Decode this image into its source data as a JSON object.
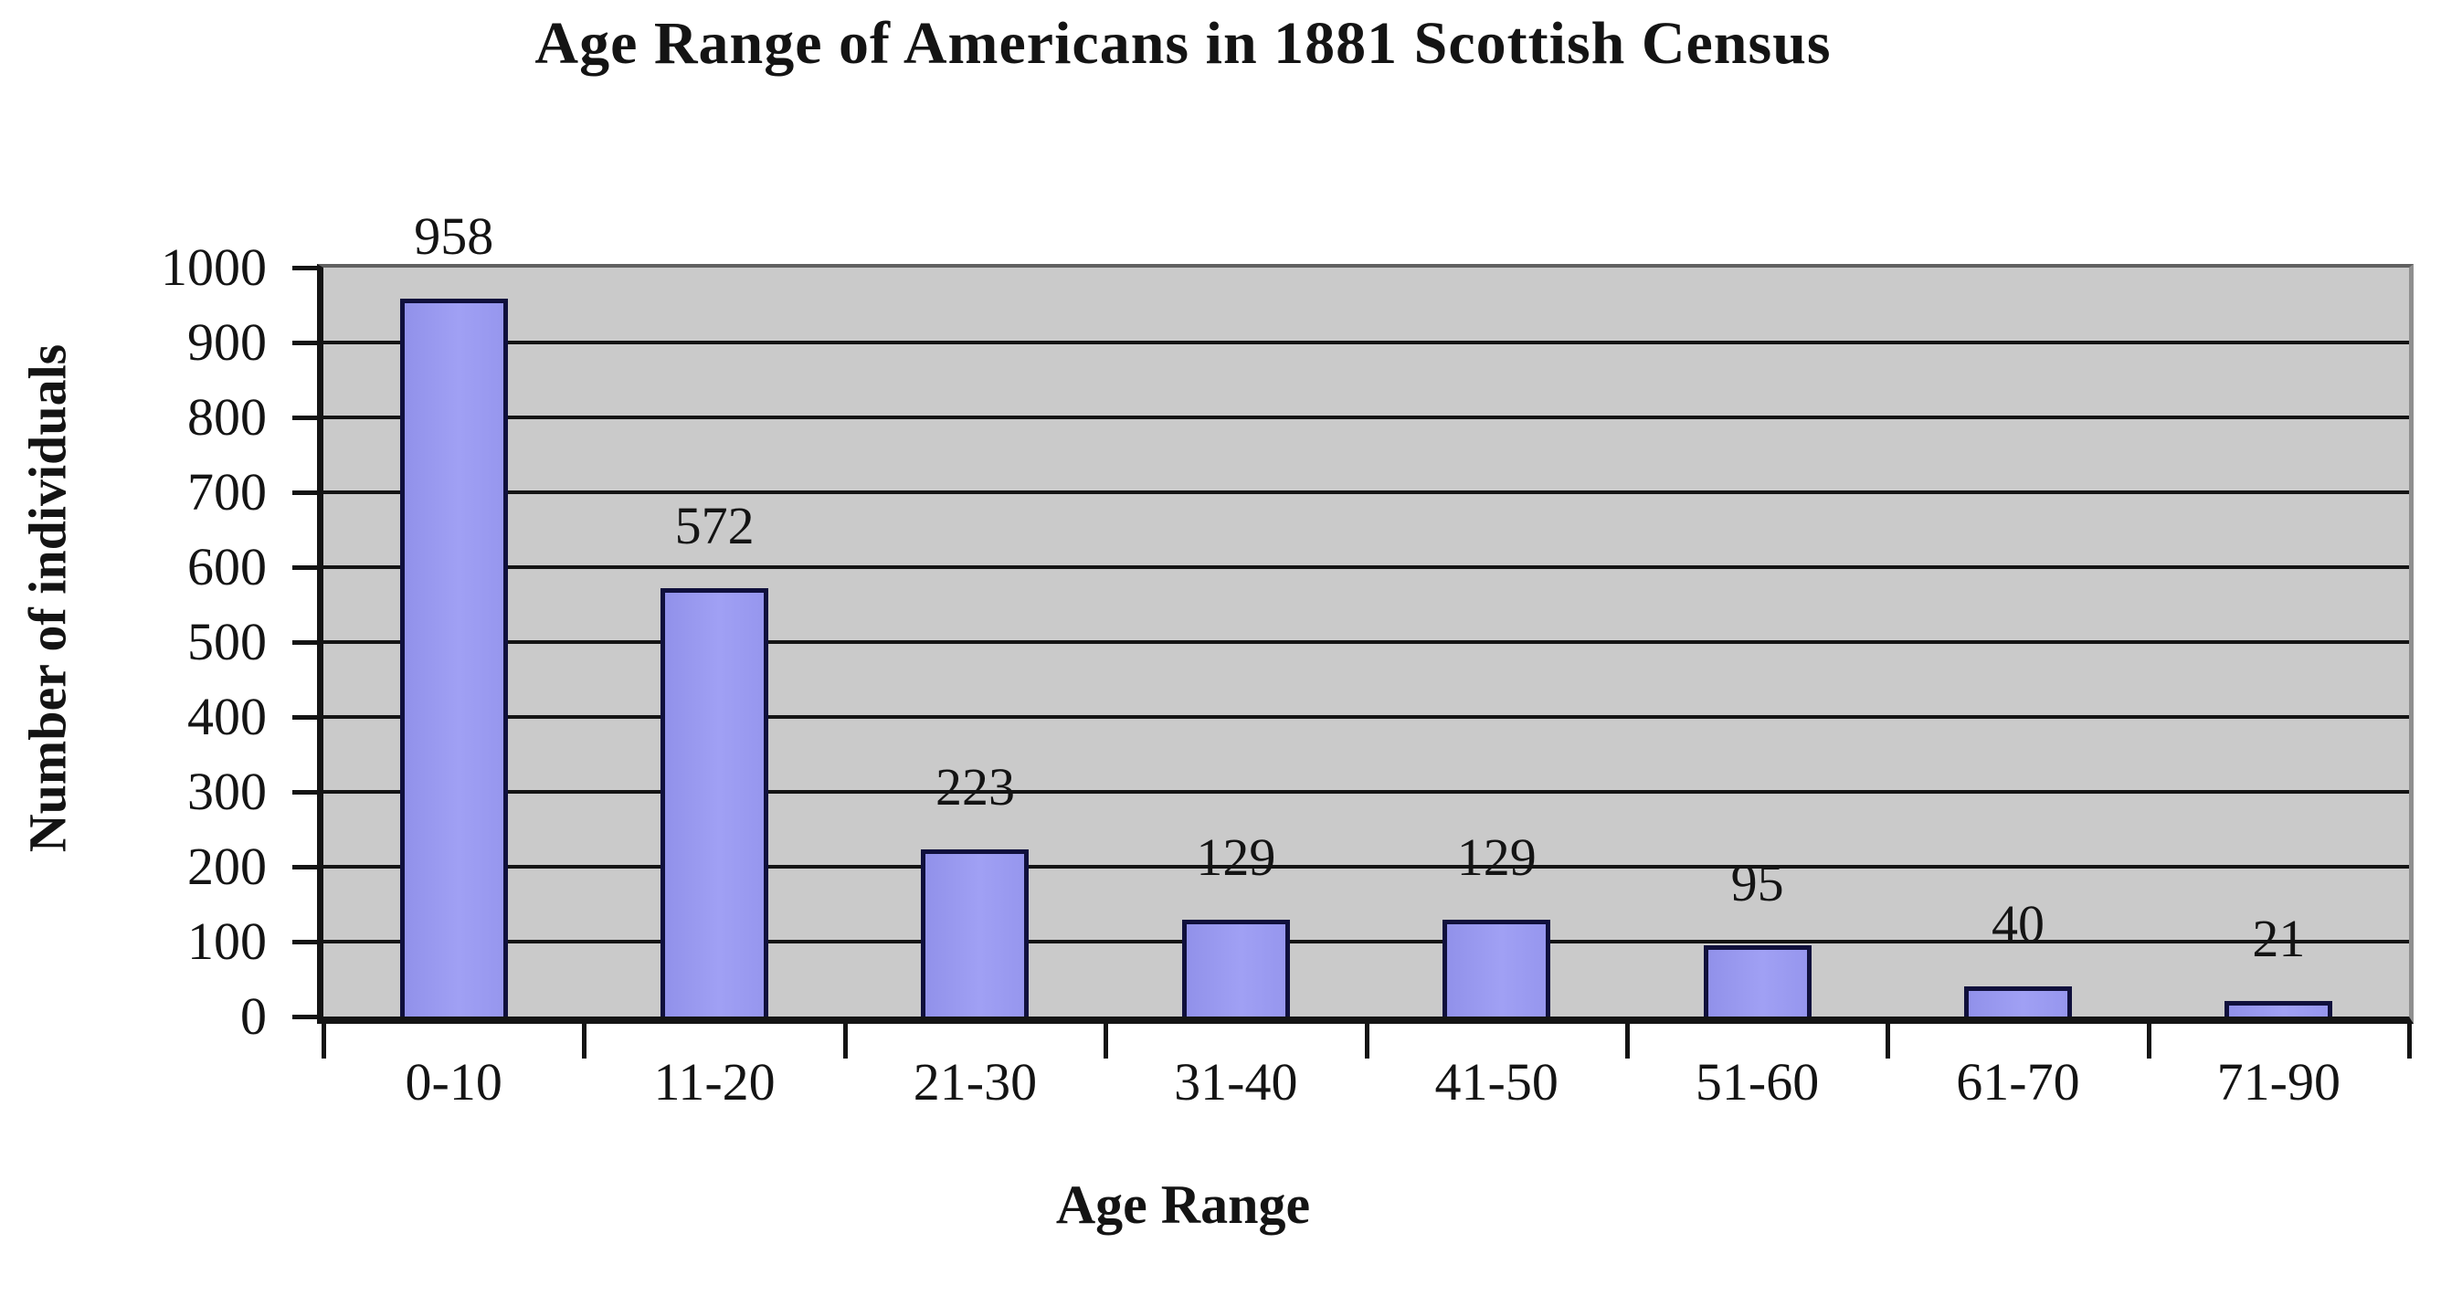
{
  "chart_data": {
    "type": "bar",
    "title": "Age Range of Americans in 1881 Scottish Census",
    "xlabel": "Age Range",
    "ylabel": "Number of individuals",
    "categories": [
      "0-10",
      "11-20",
      "21-30",
      "31-40",
      "41-50",
      "51-60",
      "61-70",
      "71-90"
    ],
    "values": [
      958,
      572,
      223,
      129,
      129,
      95,
      40,
      21
    ],
    "data_labels": [
      "958",
      "572",
      "223",
      "129",
      "129",
      "95",
      "40",
      "21"
    ],
    "ylim": [
      0,
      1000
    ],
    "yticks": [
      0,
      100,
      200,
      300,
      400,
      500,
      600,
      700,
      800,
      900,
      1000
    ],
    "grid": "horizontal",
    "legend": "none",
    "colors": {
      "bar_fill": "#9a9af1",
      "bar_border": "#10103c",
      "plot_background": "#cacaca",
      "gridline": "#141414",
      "axis": "#141414",
      "text": "#141414",
      "chart_background": "#ffffff"
    }
  }
}
